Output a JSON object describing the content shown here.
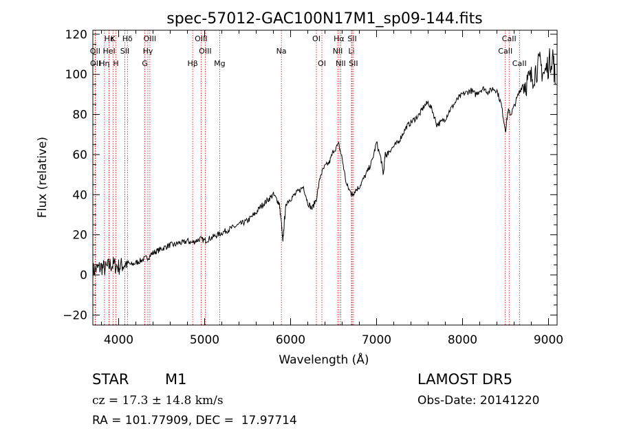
{
  "chart_data": {
    "type": "line",
    "title": "spec-57012-GAC100N17M1_sp09-144.fits",
    "xlabel": "Wavelength (Å)",
    "ylabel": "Flux (relative)",
    "xlim": [
      3700,
      9100
    ],
    "ylim": [
      -25,
      122
    ],
    "xticks": [
      4000,
      5000,
      6000,
      7000,
      8000,
      9000
    ],
    "yticks": [
      -20,
      0,
      20,
      40,
      60,
      80,
      100,
      120
    ],
    "grid": false,
    "series": [
      {
        "x": [
          3700,
          3750,
          3800,
          3850,
          3900,
          3950,
          4000,
          4050,
          4100,
          4150,
          4200,
          4250,
          4300,
          4350,
          4400,
          4450,
          4500,
          4550,
          4600,
          4650,
          4700,
          4750,
          4800,
          4850,
          4900,
          4950,
          5000,
          5050,
          5100,
          5150,
          5200,
          5250,
          5300,
          5350,
          5400,
          5450,
          5500,
          5550,
          5600,
          5650,
          5700,
          5750,
          5800,
          5850,
          5870,
          5895,
          5910,
          5930,
          5950,
          6000,
          6050,
          6100,
          6150,
          6200,
          6250,
          6300,
          6350,
          6400,
          6450,
          6500,
          6560,
          6600,
          6650,
          6700,
          6720,
          6750,
          6800,
          6850,
          6900,
          6950,
          7000,
          7050,
          7080,
          7100,
          7120,
          7150,
          7200,
          7250,
          7300,
          7350,
          7400,
          7450,
          7500,
          7550,
          7600,
          7650,
          7700,
          7750,
          7800,
          7850,
          7900,
          7950,
          8000,
          8050,
          8100,
          8150,
          8200,
          8250,
          8300,
          8350,
          8400,
          8450,
          8500,
          8530,
          8560,
          8600,
          8650,
          8700,
          8750,
          8800,
          8850,
          8900,
          8950,
          9000,
          9050,
          9080
        ],
        "y": [
          2,
          3,
          4,
          3,
          5,
          5,
          4,
          5,
          6,
          5,
          6,
          7,
          8,
          9,
          11,
          12,
          13,
          14,
          15,
          15,
          16,
          16,
          17,
          16,
          17,
          18,
          17,
          18,
          19,
          20,
          21,
          22,
          23,
          24,
          25,
          26,
          27,
          29,
          31,
          34,
          36,
          38,
          40,
          37,
          35,
          25,
          16,
          28,
          36,
          38,
          40,
          42,
          44,
          36,
          33,
          38,
          50,
          54,
          56,
          62,
          65,
          58,
          45,
          41,
          40,
          42,
          44,
          48,
          52,
          57,
          66,
          58,
          50,
          60,
          60,
          62,
          64,
          66,
          70,
          74,
          76,
          78,
          80,
          84,
          86,
          82,
          75,
          76,
          78,
          82,
          85,
          88,
          90,
          91,
          92,
          90,
          92,
          93,
          91,
          93,
          92,
          85,
          72,
          82,
          80,
          84,
          90,
          95,
          96,
          98,
          102,
          105,
          100,
          105,
          110,
          95
        ]
      }
    ],
    "annotations": {
      "line_color": "#cc0000",
      "lines": [
        {
          "label": "Hε",
          "x": 3890,
          "row": 0
        },
        {
          "label": "K",
          "x": 3934,
          "row": 0
        },
        {
          "label": "Hδ",
          "x": 4102,
          "row": 0
        },
        {
          "label": "OIII",
          "x": 4363,
          "row": 0
        },
        {
          "label": "OIII",
          "x": 4959,
          "row": 0
        },
        {
          "label": "OI",
          "x": 6300,
          "row": 0
        },
        {
          "label": "Hα",
          "x": 6563,
          "row": 0
        },
        {
          "label": "SII",
          "x": 6716,
          "row": 0
        },
        {
          "label": "CaII",
          "x": 8542,
          "row": 0
        },
        {
          "label": "OII",
          "x": 3727,
          "row": 1
        },
        {
          "label": "HeI",
          "x": 3889,
          "row": 1
        },
        {
          "label": "SII",
          "x": 4072,
          "row": 1
        },
        {
          "label": "Hγ",
          "x": 4340,
          "row": 1
        },
        {
          "label": "OIII",
          "x": 5007,
          "row": 1
        },
        {
          "label": "Na",
          "x": 5893,
          "row": 1
        },
        {
          "label": "NII",
          "x": 6548,
          "row": 1
        },
        {
          "label": "Li",
          "x": 6708,
          "row": 1
        },
        {
          "label": "CaII",
          "x": 8498,
          "row": 1
        },
        {
          "label": "OII",
          "x": 3729,
          "row": 2
        },
        {
          "label": "Hη",
          "x": 3835,
          "row": 2
        },
        {
          "label": "H",
          "x": 3968,
          "row": 2
        },
        {
          "label": "G",
          "x": 4305,
          "row": 2
        },
        {
          "label": "Hβ",
          "x": 4861,
          "row": 2
        },
        {
          "label": "Mg",
          "x": 5175,
          "row": 2
        },
        {
          "label": "OI",
          "x": 6364,
          "row": 2
        },
        {
          "label": "NII",
          "x": 6583,
          "row": 2
        },
        {
          "label": "SII",
          "x": 6731,
          "row": 2
        },
        {
          "label": "CaII",
          "x": 8662,
          "row": 2
        }
      ]
    }
  },
  "info": {
    "object_class": "STAR",
    "subclass": "M1",
    "survey": "LAMOST DR5",
    "cz": "cz = 17.3 ± 14.8 km/s",
    "obs_date": "Obs-Date: 20141220",
    "coords": "RA = 101.77909, DEC =  17.97714"
  }
}
